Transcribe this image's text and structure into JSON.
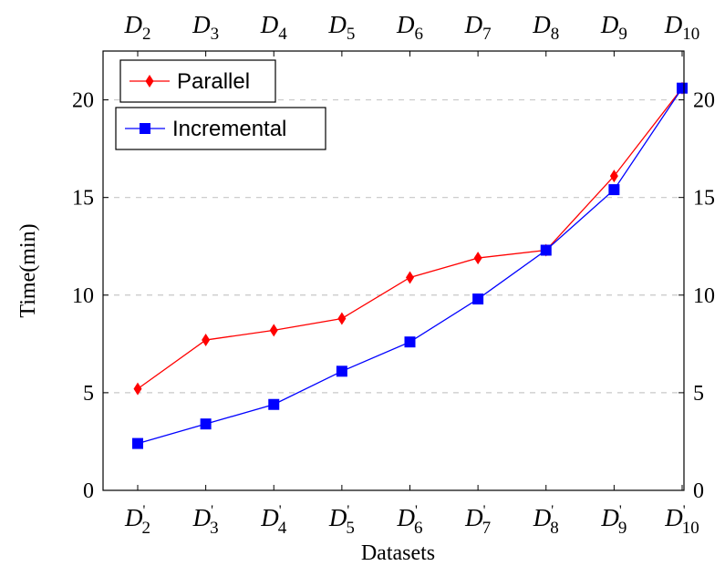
{
  "chart_data": {
    "type": "line",
    "xlabel": "Datasets",
    "ylabel": "Time(min)",
    "ylim": [
      0,
      22.5
    ],
    "y_ticks": [
      0,
      5,
      10,
      15,
      20
    ],
    "grid": "horizontal dashed",
    "legend_position": "top-left",
    "categories": [
      "D2",
      "D3",
      "D4",
      "D5",
      "D6",
      "D7",
      "D8",
      "D9",
      "D10"
    ],
    "top_tick_labels": [
      {
        "base": "D",
        "sub": "2"
      },
      {
        "base": "D",
        "sub": "3"
      },
      {
        "base": "D",
        "sub": "4"
      },
      {
        "base": "D",
        "sub": "5"
      },
      {
        "base": "D",
        "sub": "6"
      },
      {
        "base": "D",
        "sub": "7"
      },
      {
        "base": "D",
        "sub": "8"
      },
      {
        "base": "D",
        "sub": "9"
      },
      {
        "base": "D",
        "sub": "10"
      }
    ],
    "bottom_tick_labels": [
      {
        "base": "D",
        "sub": "2",
        "sup": "'"
      },
      {
        "base": "D",
        "sub": "3",
        "sup": "'"
      },
      {
        "base": "D",
        "sub": "4",
        "sup": "'"
      },
      {
        "base": "D",
        "sub": "5",
        "sup": "'"
      },
      {
        "base": "D",
        "sub": "6",
        "sup": "'"
      },
      {
        "base": "D",
        "sub": "7",
        "sup": "'"
      },
      {
        "base": "D",
        "sub": "8",
        "sup": "'"
      },
      {
        "base": "D",
        "sub": "9",
        "sup": "'"
      },
      {
        "base": "D",
        "sub": "10",
        "sup": "'"
      }
    ],
    "series": [
      {
        "name": "Parallel",
        "color": "#ff0000",
        "marker": "diamond",
        "values": [
          5.2,
          7.7,
          8.2,
          8.8,
          10.9,
          11.9,
          12.3,
          16.1,
          20.6
        ]
      },
      {
        "name": "Incremental",
        "color": "#0000ff",
        "marker": "square",
        "values": [
          2.4,
          3.4,
          4.4,
          6.1,
          7.6,
          9.8,
          12.3,
          15.4,
          20.6
        ]
      }
    ]
  }
}
